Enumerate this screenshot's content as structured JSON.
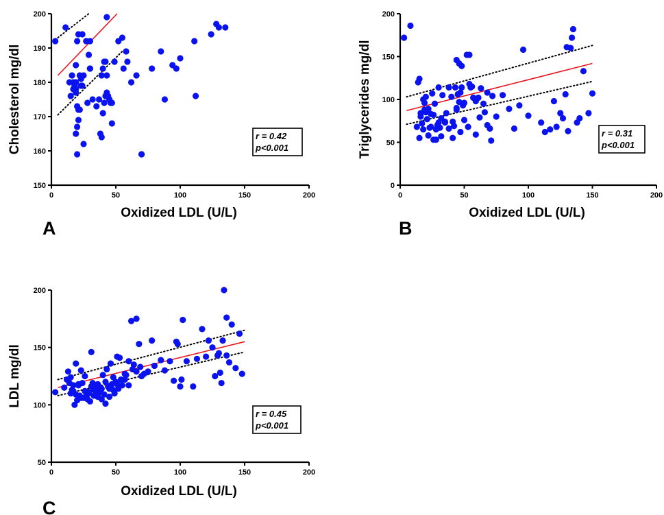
{
  "chart_data": [
    {
      "panel": "A",
      "type": "scatter",
      "xlabel": "Oxidized LDL (U/L)",
      "ylabel": "Cholesterol mg/dl",
      "xlim": [
        0,
        200
      ],
      "ylim": [
        150,
        200
      ],
      "xticks": [
        "0",
        "50",
        "100",
        "150",
        "200"
      ],
      "yticks": [
        "150",
        "160",
        "170",
        "180",
        "190",
        "200"
      ],
      "stat_r": "r = 0.42",
      "stat_p": "p<0.001",
      "point_color": "#0a12ee",
      "fit": {
        "color": "#e8141e",
        "line": [
          [
            5,
            182
          ],
          [
            51,
            200
          ]
        ]
      },
      "ci_upper": [
        [
          5,
          193
        ],
        [
          29,
          200
        ]
      ],
      "ci_lower": [
        [
          5,
          170.5
        ],
        [
          55,
          189
        ]
      ],
      "x": [
        3,
        11,
        14,
        15,
        16,
        17,
        18,
        19,
        20,
        21,
        22,
        23,
        25,
        24,
        19,
        20,
        21,
        21,
        22,
        23,
        24,
        19,
        20,
        19,
        18,
        17,
        18,
        19,
        20,
        25,
        27,
        28,
        29,
        30,
        30,
        32,
        30,
        35,
        37,
        38,
        39,
        39,
        40,
        41,
        42,
        43,
        42,
        44,
        45,
        45,
        46,
        47,
        49,
        52,
        55,
        56,
        58,
        59,
        62,
        66,
        70,
        78,
        85,
        88,
        94,
        97,
        100,
        111,
        112,
        124,
        128,
        130,
        135,
        41,
        43,
        40,
        47,
        70,
        43
      ],
      "y": [
        192,
        196,
        180,
        176,
        182,
        178,
        179,
        180,
        192,
        194,
        182,
        181,
        182,
        194,
        185,
        167,
        169,
        172,
        172,
        179,
        179,
        165,
        159,
        178,
        179,
        180,
        179,
        177,
        173,
        162,
        192,
        174,
        188,
        192,
        184,
        175,
        184,
        173,
        175,
        165,
        164,
        182,
        184,
        186,
        176,
        177,
        186,
        176,
        175,
        175,
        174,
        168,
        186,
        192,
        193,
        184,
        189,
        186,
        180,
        182,
        159,
        184,
        189,
        175,
        185,
        184,
        187,
        192,
        176,
        194,
        197,
        196,
        196,
        174,
        182,
        171,
        174,
        159,
        199
      ]
    },
    {
      "panel": "B",
      "type": "scatter",
      "xlabel": "Oxidized LDL (U/L)",
      "ylabel": "Triglycerides mg/dl",
      "xlim": [
        0,
        200
      ],
      "ylim": [
        0,
        200
      ],
      "xticks": [
        "0",
        "50",
        "100",
        "150",
        "200"
      ],
      "yticks": [
        "0",
        "50",
        "100",
        "150",
        "200"
      ],
      "stat_r": "r = 0.31",
      "stat_p": "p<0.001",
      "point_color": "#0a12ee",
      "fit": {
        "color": "#e8141e",
        "line": [
          [
            5,
            87
          ],
          [
            150,
            142
          ]
        ]
      },
      "ci_upper": [
        [
          5,
          103
        ],
        [
          150,
          163
        ]
      ],
      "ci_lower": [
        [
          5,
          71
        ],
        [
          150,
          121
        ]
      ],
      "x": [
        3,
        8,
        13,
        14,
        15,
        16,
        17,
        18,
        19,
        20,
        21,
        22,
        23,
        24,
        25,
        26,
        27,
        28,
        29,
        30,
        31,
        32,
        33,
        35,
        36,
        38,
        40,
        41,
        42,
        43,
        44,
        45,
        46,
        47,
        48,
        49,
        50,
        52,
        54,
        55,
        57,
        59,
        61,
        63,
        66,
        68,
        70,
        72,
        75,
        80,
        85,
        89,
        93,
        96,
        100,
        110,
        113,
        117,
        120,
        122,
        125,
        127,
        129,
        131,
        133,
        135,
        138,
        140,
        143,
        147,
        150,
        15,
        16,
        18,
        19,
        20,
        22,
        24,
        26,
        28,
        30,
        32,
        35,
        38,
        41,
        44,
        47,
        50,
        53,
        56,
        59,
        62,
        65,
        68,
        71,
        44,
        46,
        48,
        54,
        130,
        134
      ],
      "y": [
        172,
        186,
        68,
        120,
        124,
        84,
        72,
        65,
        96,
        103,
        77,
        58,
        67,
        83,
        107,
        82,
        95,
        53,
        70,
        114,
        67,
        57,
        105,
        74,
        84,
        114,
        103,
        74,
        69,
        114,
        88,
        106,
        97,
        108,
        114,
        93,
        96,
        152,
        118,
        114,
        102,
        98,
        102,
        113,
        85,
        108,
        66,
        104,
        80,
        105,
        89,
        66,
        93,
        158,
        81,
        73,
        62,
        65,
        98,
        68,
        84,
        78,
        106,
        63,
        160,
        182,
        73,
        78,
        133,
        84,
        107,
        55,
        80,
        100,
        88,
        85,
        89,
        68,
        53,
        65,
        73,
        78,
        73,
        66,
        55,
        90,
        62,
        76,
        68,
        115,
        59,
        79,
        95,
        70,
        52,
        146,
        142,
        139,
        152,
        161,
        172
      ]
    },
    {
      "panel": "C",
      "type": "scatter",
      "xlabel": "Oxidized LDL (U/L)",
      "ylabel": "LDL mg/dl",
      "xlim": [
        0,
        200
      ],
      "ylim": [
        50,
        200
      ],
      "xticks": [
        "0",
        "50",
        "100",
        "150",
        "200"
      ],
      "yticks": [
        "50",
        "100",
        "150",
        "200"
      ],
      "stat_r": "r = 0.45",
      "stat_p": "p<0.001",
      "point_color": "#0a12ee",
      "fit": {
        "color": "#e8141e",
        "line": [
          [
            5,
            115
          ],
          [
            150,
            155
          ]
        ]
      },
      "ci_upper": [
        [
          5,
          122
        ],
        [
          150,
          165
        ]
      ],
      "ci_lower": [
        [
          5,
          108
        ],
        [
          150,
          146
        ]
      ],
      "x": [
        3,
        10,
        12,
        13,
        14,
        15,
        16,
        17,
        18,
        19,
        20,
        21,
        22,
        23,
        24,
        25,
        26,
        27,
        28,
        29,
        30,
        31,
        32,
        33,
        34,
        35,
        36,
        37,
        38,
        39,
        40,
        41,
        42,
        43,
        44,
        45,
        46,
        47,
        48,
        49,
        50,
        51,
        52,
        53,
        55,
        57,
        58,
        60,
        62,
        64,
        66,
        68,
        70,
        72,
        75,
        78,
        80,
        85,
        88,
        92,
        95,
        97,
        100,
        102,
        105,
        110,
        113,
        117,
        120,
        122,
        125,
        127,
        129,
        130,
        132,
        134,
        136,
        138,
        140,
        143,
        146,
        148,
        15,
        17,
        19,
        21,
        23,
        26,
        29,
        31,
        33,
        36,
        39,
        42,
        45,
        48,
        51,
        54,
        57,
        60,
        63,
        66,
        69,
        98,
        101,
        131,
        133,
        136
      ],
      "y": [
        111,
        115,
        122,
        129,
        119,
        110,
        113,
        117,
        100,
        136,
        104,
        117,
        108,
        130,
        119,
        106,
        112,
        108,
        105,
        110,
        103,
        146,
        119,
        108,
        115,
        112,
        107,
        116,
        111,
        114,
        126,
        109,
        101,
        131,
        116,
        107,
        136,
        118,
        124,
        110,
        120,
        142,
        114,
        141,
        117,
        122,
        126,
        138,
        173,
        135,
        175,
        153,
        125,
        127,
        129,
        156,
        134,
        139,
        130,
        138,
        121,
        155,
        116,
        174,
        138,
        116,
        140,
        166,
        142,
        156,
        150,
        125,
        143,
        145,
        119,
        200,
        176,
        137,
        170,
        132,
        162,
        127,
        124,
        112,
        109,
        118,
        106,
        125,
        111,
        116,
        113,
        118,
        105,
        120,
        114,
        113,
        118,
        122,
        127,
        117,
        131,
        129,
        133,
        153,
        122,
        128,
        156,
        143
      ]
    }
  ]
}
